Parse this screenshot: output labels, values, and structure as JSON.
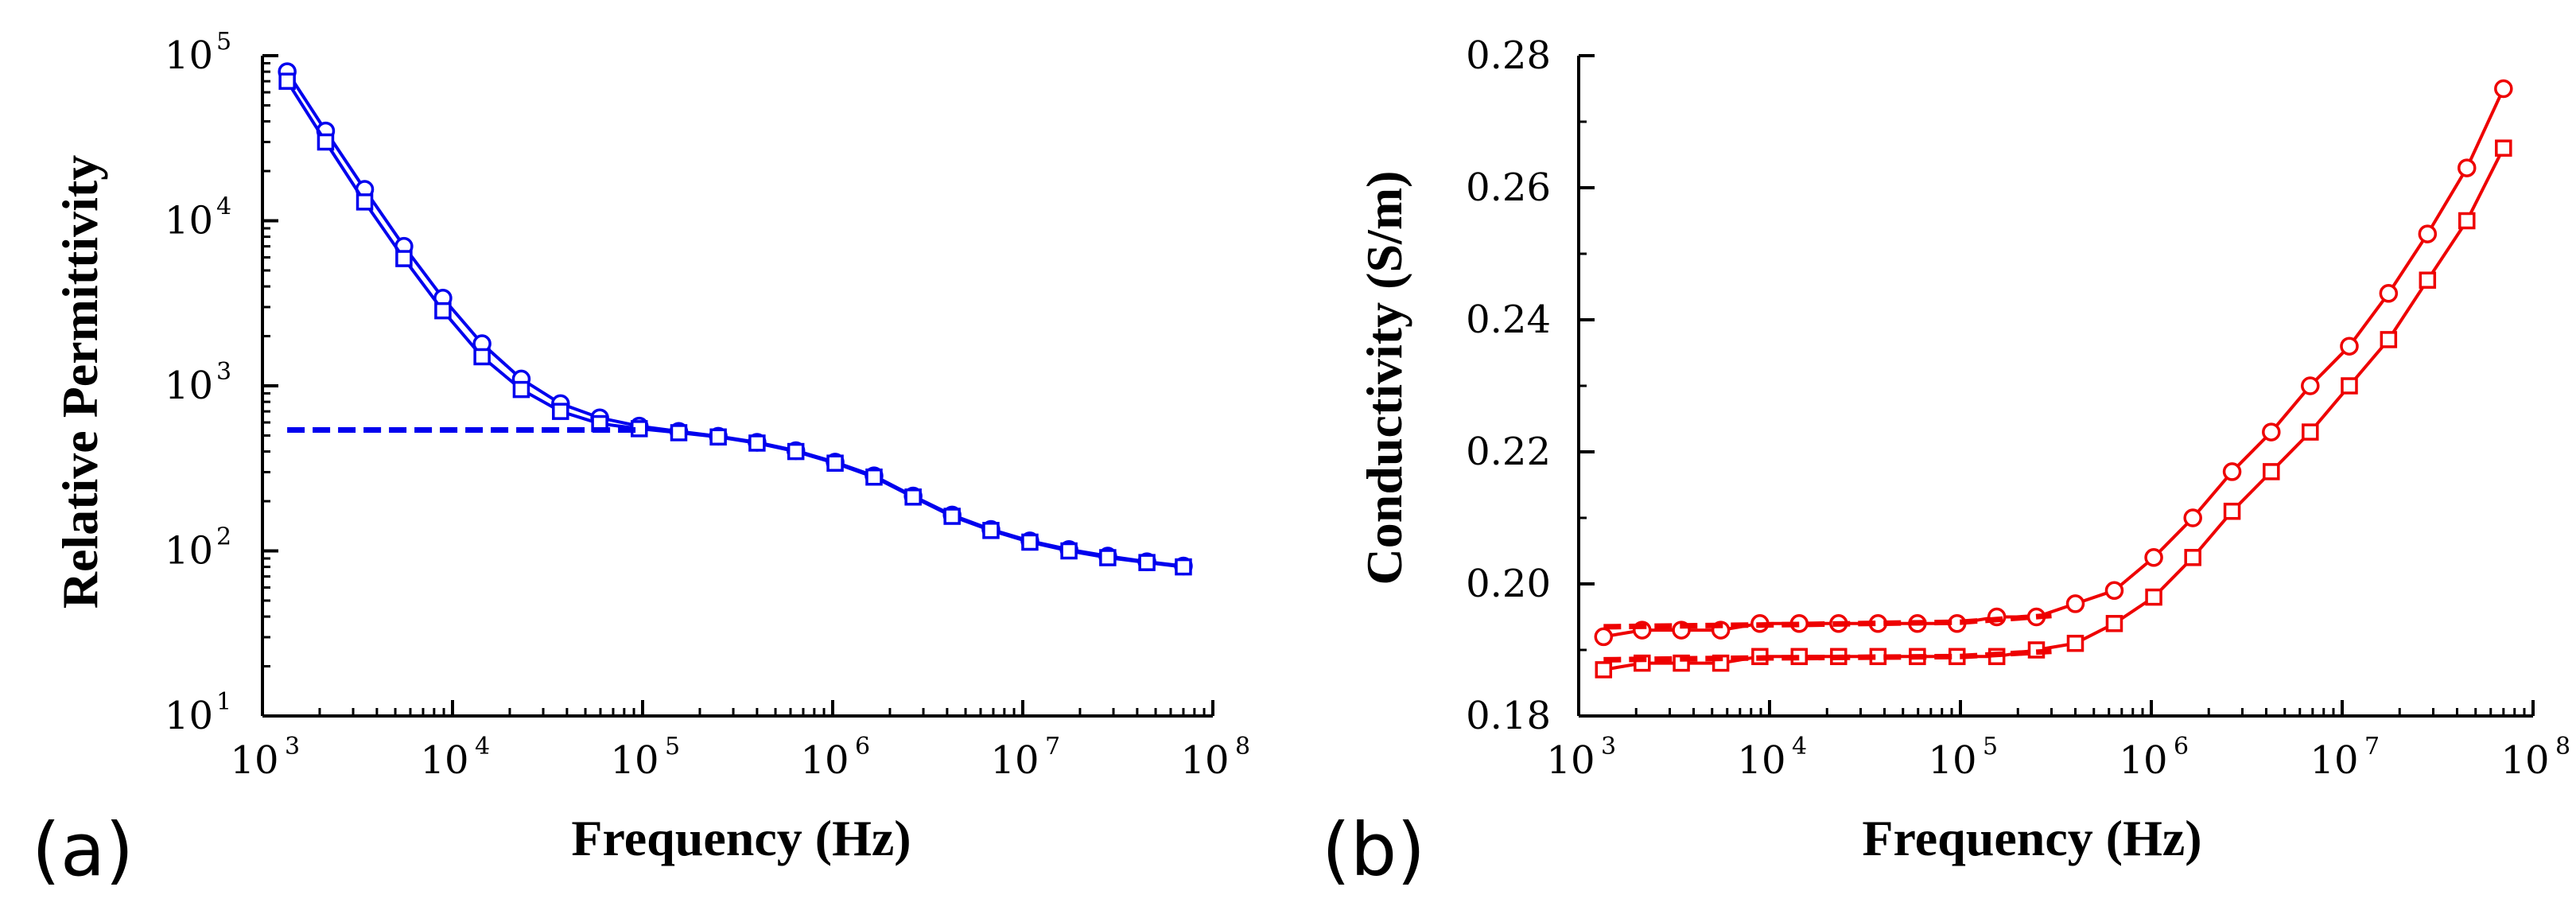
{
  "chart_data": [
    {
      "panel_label": "(a)",
      "type": "line",
      "xscale": "log",
      "yscale": "log",
      "xlabel": "Frequency (Hz)",
      "ylabel": "Relative Permittivity",
      "xlim": [
        1000,
        100000000
      ],
      "ylim": [
        10,
        100000
      ],
      "xticks": [
        {
          "base": "10",
          "exp": "3"
        },
        {
          "base": "10",
          "exp": "4"
        },
        {
          "base": "10",
          "exp": "5"
        },
        {
          "base": "10",
          "exp": "6"
        },
        {
          "base": "10",
          "exp": "7"
        },
        {
          "base": "10",
          "exp": "8"
        }
      ],
      "yticks": [
        {
          "base": "10",
          "exp": "1"
        },
        {
          "base": "10",
          "exp": "2"
        },
        {
          "base": "10",
          "exp": "3"
        },
        {
          "base": "10",
          "exp": "4"
        },
        {
          "base": "10",
          "exp": "5"
        }
      ],
      "color": "#0000ee",
      "series": [
        {
          "name": "circles",
          "marker": "circle",
          "style": "solid",
          "x": [
            1350,
            2150,
            3450,
            5550,
            8900,
            14300,
            23000,
            37000,
            59500,
            96000,
            155000,
            250000,
            400000,
            640000,
            1030000,
            1650000,
            2650000,
            4250000,
            6800000,
            10900000,
            17500000,
            28000000,
            45000000,
            70000000
          ],
          "y": [
            80000,
            35000,
            15500,
            7000,
            3400,
            1800,
            1100,
            780,
            640,
            570,
            530,
            495,
            455,
            405,
            345,
            285,
            215,
            165,
            135,
            115,
            102,
            93,
            86,
            81
          ]
        },
        {
          "name": "squares",
          "marker": "square",
          "style": "solid",
          "x": [
            1350,
            2150,
            3450,
            5550,
            8900,
            14300,
            23000,
            37000,
            59500,
            96000,
            155000,
            250000,
            400000,
            640000,
            1030000,
            1650000,
            2650000,
            4250000,
            6800000,
            10900000,
            17500000,
            28000000,
            45000000,
            70000000
          ],
          "y": [
            70000,
            30000,
            13000,
            5900,
            2850,
            1500,
            950,
            700,
            590,
            550,
            520,
            490,
            450,
            400,
            340,
            280,
            212,
            162,
            133,
            113,
            100,
            91,
            85,
            80
          ]
        },
        {
          "name": "fit-dashed",
          "marker": "none",
          "style": "dashed",
          "x": [
            1350,
            10000,
            50000,
            100000
          ],
          "y": [
            540,
            540,
            540,
            540
          ]
        }
      ]
    },
    {
      "panel_label": "(b)",
      "type": "line",
      "xscale": "log",
      "yscale": "linear",
      "xlabel": "Frequency (Hz)",
      "ylabel": "Conductivity (S/m)",
      "xlim": [
        1000,
        100000000
      ],
      "ylim": [
        0.18,
        0.28
      ],
      "xticks": [
        {
          "base": "10",
          "exp": "3"
        },
        {
          "base": "10",
          "exp": "4"
        },
        {
          "base": "10",
          "exp": "5"
        },
        {
          "base": "10",
          "exp": "6"
        },
        {
          "base": "10",
          "exp": "7"
        },
        {
          "base": "10",
          "exp": "8"
        }
      ],
      "yticks": [
        "0.18",
        "0.20",
        "0.22",
        "0.24",
        "0.26",
        "0.28"
      ],
      "color": "#ee0000",
      "series": [
        {
          "name": "circles",
          "marker": "circle",
          "style": "solid",
          "x": [
            1350,
            2150,
            3450,
            5550,
            8900,
            14300,
            23000,
            37000,
            59500,
            96000,
            155000,
            250000,
            400000,
            640000,
            1030000,
            1650000,
            2650000,
            4250000,
            6800000,
            10900000,
            17500000,
            28000000,
            45000000,
            70000000
          ],
          "y": [
            0.192,
            0.193,
            0.193,
            0.193,
            0.194,
            0.194,
            0.194,
            0.194,
            0.194,
            0.194,
            0.195,
            0.195,
            0.197,
            0.199,
            0.204,
            0.21,
            0.217,
            0.223,
            0.23,
            0.236,
            0.244,
            0.253,
            0.263,
            0.275
          ]
        },
        {
          "name": "squares",
          "marker": "square",
          "style": "solid",
          "x": [
            1350,
            2150,
            3450,
            5550,
            8900,
            14300,
            23000,
            37000,
            59500,
            96000,
            155000,
            250000,
            400000,
            640000,
            1030000,
            1650000,
            2650000,
            4250000,
            6800000,
            10900000,
            17500000,
            28000000,
            45000000,
            70000000
          ],
          "y": [
            0.187,
            0.188,
            0.188,
            0.188,
            0.189,
            0.189,
            0.189,
            0.189,
            0.189,
            0.189,
            0.189,
            0.19,
            0.191,
            0.194,
            0.198,
            0.204,
            0.211,
            0.217,
            0.223,
            0.23,
            0.237,
            0.246,
            0.255,
            0.266
          ]
        },
        {
          "name": "fit-dashed-circles",
          "marker": "none",
          "style": "dashed",
          "x": [
            1350,
            10000,
            100000,
            300000
          ],
          "y": [
            0.1935,
            0.1938,
            0.1942,
            0.1952
          ]
        },
        {
          "name": "fit-dashed-squares",
          "marker": "none",
          "style": "dashed",
          "x": [
            1350,
            10000,
            100000,
            300000
          ],
          "y": [
            0.1885,
            0.1888,
            0.189,
            0.1898
          ]
        }
      ]
    }
  ]
}
